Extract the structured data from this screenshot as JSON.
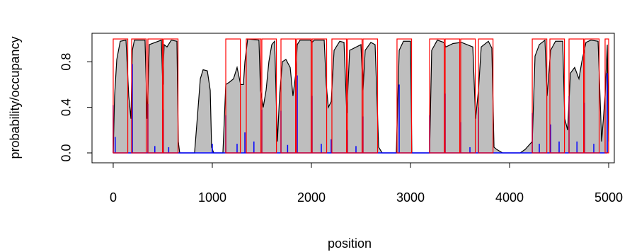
{
  "chart_data": {
    "type": "occupancy",
    "xlabel": "position",
    "ylabel": "probability/occupancy",
    "xlim": [
      -214,
      5057
    ],
    "ylim": [
      -0.087,
      1.05
    ],
    "xticks": [
      0,
      1000,
      2000,
      3000,
      4000,
      5000
    ],
    "yticks": [
      {
        "value": 0,
        "label": "0.0"
      },
      {
        "value": 0.4,
        "label": "0.4"
      },
      {
        "value": 0.8,
        "label": "0.8"
      }
    ],
    "occupancy": {
      "color": "#bebebe",
      "line_color": "#000000",
      "x": [
        0,
        14,
        36,
        71,
        129,
        157,
        179,
        193,
        214,
        321,
        343,
        364,
        486,
        500,
        514,
        543,
        586,
        643,
        657,
        671,
        821,
        857,
        879,
        907,
        950,
        979,
        993,
        1014,
        1107,
        1136,
        1171,
        1214,
        1250,
        1286,
        1314,
        1329,
        1357,
        1471,
        1486,
        1514,
        1543,
        1571,
        1600,
        1629,
        1657,
        1679,
        1707,
        1743,
        1786,
        1814,
        1843,
        1857,
        1886,
        1986,
        2007,
        2029,
        2129,
        2150,
        2171,
        2200,
        2229,
        2286,
        2329,
        2357,
        2386,
        2500,
        2521,
        2543,
        2600,
        2643,
        2679,
        2714,
        2857,
        2886,
        2929,
        3000,
        3014,
        3193,
        3214,
        3271,
        3336,
        3357,
        3429,
        3514,
        3571,
        3629,
        3657,
        3686,
        3714,
        3786,
        3821,
        3843,
        3871,
        3929,
        4107,
        4157,
        4229,
        4257,
        4300,
        4357,
        4379,
        4414,
        4464,
        4536,
        4557,
        4586,
        4614,
        4657,
        4700,
        4729,
        4771,
        4821,
        4893,
        4929,
        4964,
        4986,
        5000
      ],
      "values": [
        0,
        0.5,
        0.82,
        0.98,
        0.99,
        0.5,
        0.3,
        0.9,
        0.99,
        0.99,
        0.3,
        0.95,
        0.99,
        0.6,
        0.95,
        0.93,
        0.99,
        0.98,
        0.1,
        0,
        0,
        0.4,
        0.65,
        0.73,
        0.72,
        0.55,
        0.05,
        0,
        0,
        0.6,
        0.62,
        0.65,
        0.75,
        0.6,
        0.6,
        0.8,
        1,
        0.99,
        0.55,
        0.4,
        0.55,
        0.8,
        0.95,
        0.98,
        0.1,
        0.5,
        0.8,
        0.82,
        0.75,
        0.5,
        0.7,
        0.95,
        0.99,
        0.99,
        0.97,
        0.99,
        0.99,
        0.6,
        0.4,
        0.45,
        0.9,
        0.98,
        0.97,
        0.35,
        0.9,
        0.95,
        0.55,
        0.9,
        0.97,
        0.95,
        0.05,
        0,
        0,
        0.9,
        0.98,
        0.98,
        0,
        0,
        0.9,
        0.99,
        0.97,
        0.93,
        0.96,
        0.97,
        0.95,
        0.93,
        0.3,
        0.55,
        0.93,
        0.98,
        0.92,
        0.05,
        0.03,
        0,
        0,
        0.03,
        0.1,
        0.85,
        0.95,
        0.99,
        0.5,
        0.9,
        0.98,
        0.98,
        0.3,
        0.2,
        0.7,
        0.75,
        0.65,
        0.8,
        0.97,
        0.99,
        0.98,
        0.1,
        0.5,
        0.95,
        0.1
      ]
    },
    "probability": {
      "color": "#0000ff",
      "x": [
        0,
        20,
        193,
        350,
        420,
        500,
        560,
        1000,
        1136,
        1250,
        1329,
        1420,
        1500,
        1693,
        1760,
        1857,
        2007,
        2100,
        2200,
        2364,
        2450,
        2521,
        2886,
        3193,
        3350,
        3507,
        3600,
        3686,
        4229,
        4300,
        4414,
        4500,
        4600,
        4680,
        4757,
        4850,
        4986
      ],
      "values": [
        0.42,
        0.14,
        0.78,
        0.43,
        0.06,
        0.38,
        0.05,
        0.08,
        0.33,
        0.08,
        0.18,
        0.1,
        0.38,
        0.37,
        0.07,
        0.68,
        0.5,
        0.08,
        0.12,
        0.2,
        0.06,
        0.32,
        0.6,
        0.33,
        0.52,
        0.27,
        0.05,
        0.4,
        0.35,
        0.08,
        0.25,
        0.1,
        0.5,
        0.1,
        0.44,
        0.08,
        0.7
      ]
    },
    "calls": {
      "color": "#ff0000",
      "starts": [
        0,
        186,
        350,
        507,
        1136,
        1343,
        1500,
        1693,
        1850,
        2007,
        2207,
        2364,
        2521,
        2864,
        3193,
        3350,
        3507,
        3686,
        4229,
        4407,
        4600,
        4757,
        4964
      ],
      "ends": [
        147,
        333,
        497,
        654,
        1283,
        1490,
        1647,
        1840,
        1997,
        2154,
        2354,
        2511,
        2668,
        3011,
        3340,
        3497,
        3654,
        3833,
        4376,
        4554,
        4747,
        4904,
        5000
      ],
      "values": [
        1,
        1,
        1,
        1,
        1,
        1,
        1,
        1,
        1,
        1,
        1,
        1,
        1,
        1,
        1,
        1,
        1,
        1,
        1,
        1,
        1,
        1,
        1
      ]
    }
  }
}
